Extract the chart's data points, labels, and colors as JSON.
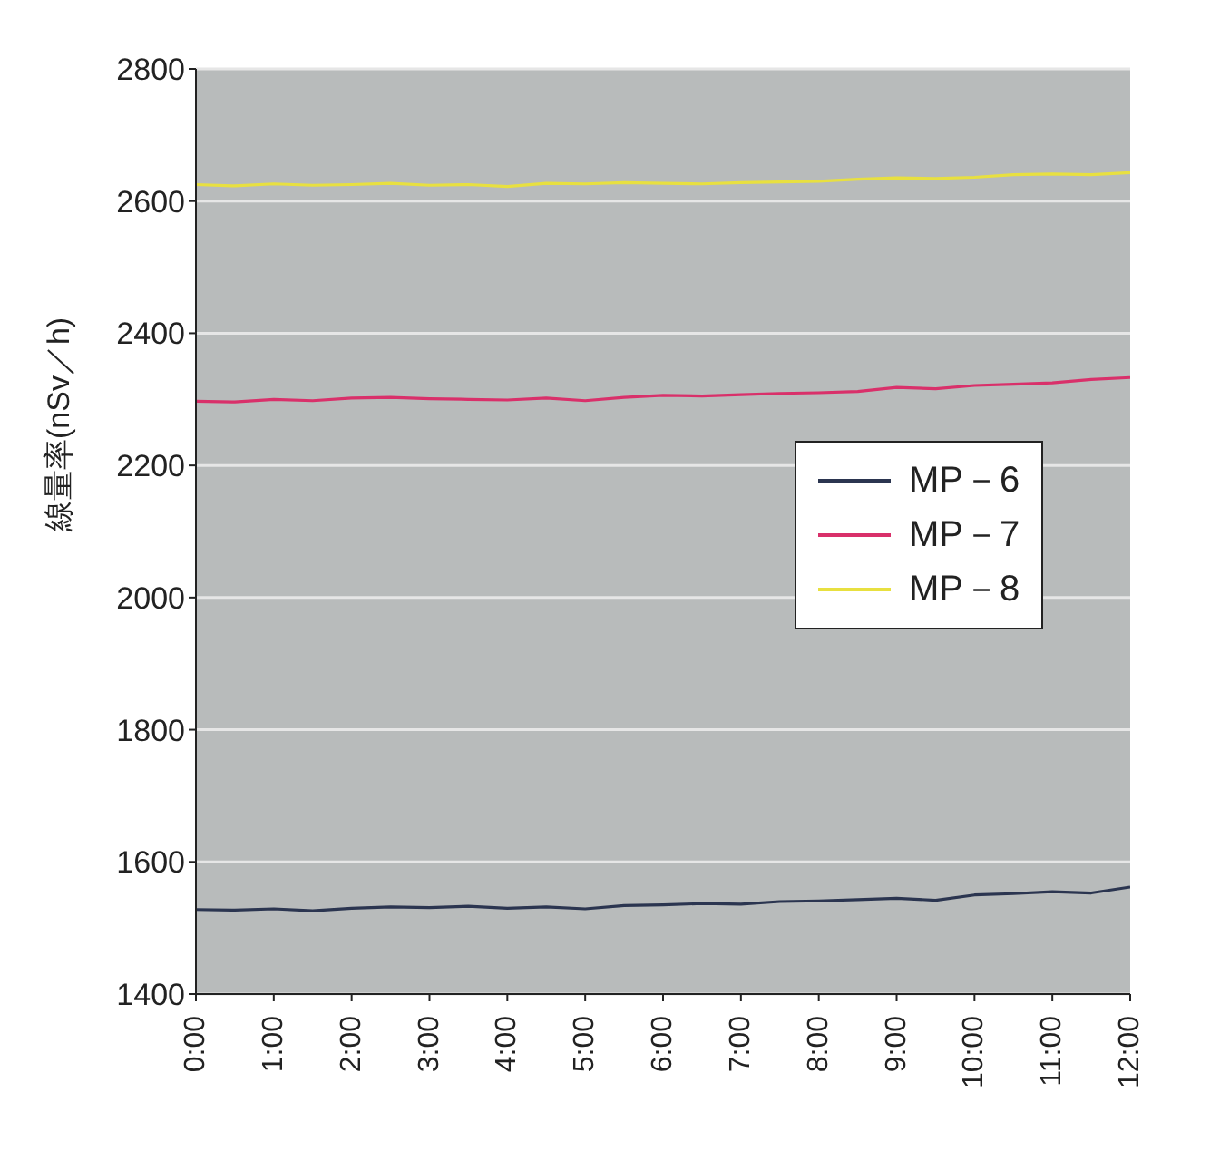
{
  "chart_data": {
    "type": "line",
    "ylabel": "線量率(nSv／h)",
    "x": [
      0,
      0.5,
      1,
      1.5,
      2,
      2.5,
      3,
      3.5,
      4,
      4.5,
      5,
      5.5,
      6,
      6.5,
      7,
      7.5,
      8,
      8.5,
      9,
      9.5,
      10,
      10.5,
      11,
      11.5,
      12
    ],
    "series": [
      {
        "name": "MP－6",
        "color": "#2b3550",
        "values": [
          1528,
          1527,
          1529,
          1526,
          1530,
          1532,
          1531,
          1533,
          1530,
          1532,
          1529,
          1534,
          1535,
          1537,
          1536,
          1540,
          1541,
          1543,
          1545,
          1542,
          1550,
          1552,
          1555,
          1553,
          1562
        ]
      },
      {
        "name": "MP－7",
        "color": "#d9306a",
        "values": [
          2297,
          2296,
          2300,
          2298,
          2302,
          2303,
          2301,
          2300,
          2299,
          2302,
          2298,
          2303,
          2306,
          2305,
          2307,
          2309,
          2310,
          2312,
          2318,
          2316,
          2321,
          2323,
          2325,
          2330,
          2333
        ]
      },
      {
        "name": "MP－8",
        "color": "#e8e040",
        "values": [
          2625,
          2623,
          2626,
          2624,
          2625,
          2627,
          2624,
          2625,
          2622,
          2627,
          2626,
          2628,
          2627,
          2626,
          2628,
          2629,
          2630,
          2633,
          2635,
          2634,
          2636,
          2640,
          2641,
          2640,
          2643
        ]
      }
    ],
    "xlim": [
      0,
      12
    ],
    "xticks": [
      {
        "value": 0,
        "label": "0:00"
      },
      {
        "value": 1,
        "label": "1:00"
      },
      {
        "value": 2,
        "label": "2:00"
      },
      {
        "value": 3,
        "label": "3:00"
      },
      {
        "value": 4,
        "label": "4:00"
      },
      {
        "value": 5,
        "label": "5:00"
      },
      {
        "value": 6,
        "label": "6:00"
      },
      {
        "value": 7,
        "label": "7:00"
      },
      {
        "value": 8,
        "label": "8:00"
      },
      {
        "value": 9,
        "label": "9:00"
      },
      {
        "value": 10,
        "label": "10:00"
      },
      {
        "value": 11,
        "label": "11:00"
      },
      {
        "value": 12,
        "label": "12:00"
      }
    ],
    "ylim": [
      1400,
      2800
    ],
    "yticks": [
      1400,
      1600,
      1800,
      2000,
      2200,
      2400,
      2600,
      2800
    ],
    "grid": "y",
    "legend": "right",
    "marker": "none",
    "line_style": "solid"
  }
}
